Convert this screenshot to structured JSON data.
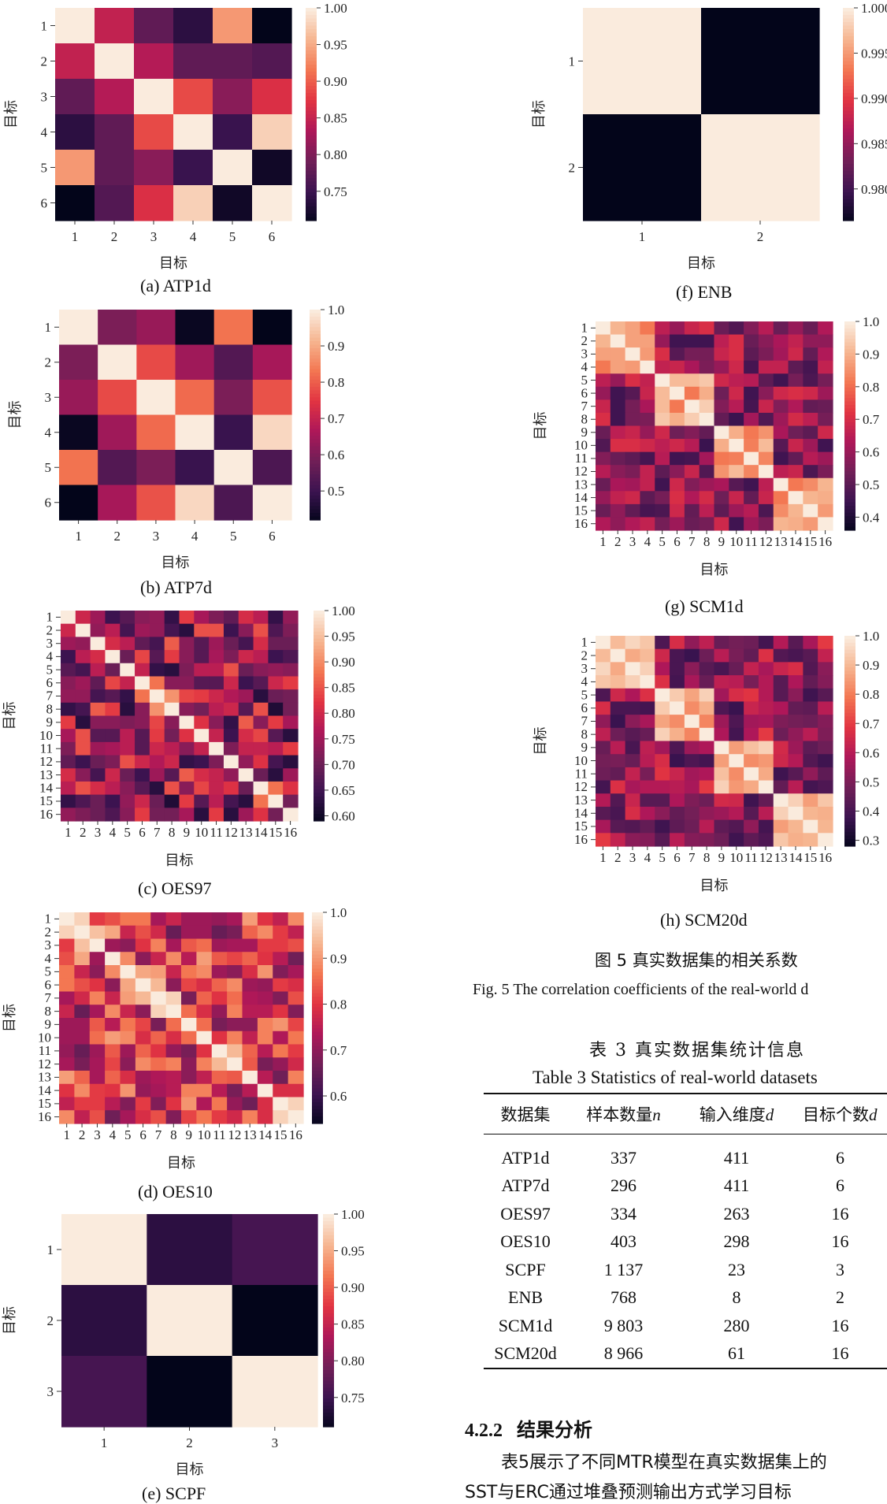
{
  "colormap": [
    "#03051a",
    "#3b1350",
    "#701f57",
    "#ad1759",
    "#e13342",
    "#f37651",
    "#f6b48f",
    "#faebdd"
  ],
  "axis_label": "目标",
  "chart_data": [
    {
      "id": "a",
      "type": "heatmap",
      "caption": "(a) ATP1d",
      "labels": [
        "1",
        "2",
        "3",
        "4",
        "5",
        "6"
      ],
      "vmin": 0.71,
      "vmax": 1.0,
      "colorbar_ticks": [
        "1.00",
        "0.95",
        "0.90",
        "0.85",
        "0.80",
        "0.75"
      ],
      "colorbar_values": [
        1.0,
        0.95,
        0.9,
        0.85,
        0.8,
        0.75
      ],
      "matrix": [
        [
          1.0,
          0.85,
          0.78,
          0.74,
          0.94,
          0.71
        ],
        [
          0.85,
          1.0,
          0.84,
          0.78,
          0.78,
          0.77
        ],
        [
          0.78,
          0.84,
          1.0,
          0.89,
          0.81,
          0.87
        ],
        [
          0.74,
          0.78,
          0.89,
          1.0,
          0.75,
          0.98
        ],
        [
          0.94,
          0.78,
          0.81,
          0.75,
          1.0,
          0.72
        ],
        [
          0.71,
          0.77,
          0.87,
          0.98,
          0.72,
          1.0
        ]
      ]
    },
    {
      "id": "b",
      "type": "heatmap",
      "caption": "(b) ATP7d",
      "labels": [
        "1",
        "2",
        "3",
        "4",
        "5",
        "6"
      ],
      "vmin": 0.42,
      "vmax": 1.0,
      "colorbar_ticks": [
        "1.0",
        "0.9",
        "0.8",
        "0.7",
        "0.6",
        "0.5"
      ],
      "colorbar_values": [
        1.0,
        0.9,
        0.8,
        0.7,
        0.6,
        0.5
      ],
      "matrix": [
        [
          1.0,
          0.6,
          0.64,
          0.43,
          0.83,
          0.42
        ],
        [
          0.6,
          1.0,
          0.78,
          0.65,
          0.54,
          0.66
        ],
        [
          0.64,
          0.78,
          1.0,
          0.82,
          0.6,
          0.79
        ],
        [
          0.43,
          0.65,
          0.82,
          1.0,
          0.5,
          0.97
        ],
        [
          0.83,
          0.54,
          0.6,
          0.5,
          1.0,
          0.53
        ],
        [
          0.42,
          0.66,
          0.79,
          0.97,
          0.53,
          1.0
        ]
      ]
    },
    {
      "id": "c",
      "type": "heatmap",
      "caption": "(c) OES97",
      "labels": [
        "1",
        "2",
        "3",
        "4",
        "5",
        "6",
        "7",
        "8",
        "9",
        "10",
        "11",
        "12",
        "13",
        "14",
        "15",
        "16"
      ],
      "vmin": 0.59,
      "vmax": 1.0,
      "colorbar_ticks": [
        "1.00",
        "0.95",
        "0.90",
        "0.85",
        "0.80",
        "0.75",
        "0.70",
        "0.65",
        "0.60"
      ],
      "colorbar_values": [
        1.0,
        0.95,
        0.9,
        0.85,
        0.8,
        0.75,
        0.7,
        0.65,
        0.6
      ],
      "seed": 7,
      "lo": 0.62,
      "hi": 0.86
    },
    {
      "id": "d",
      "type": "heatmap",
      "caption": "(d) OES10",
      "labels": [
        "1",
        "2",
        "3",
        "4",
        "5",
        "6",
        "7",
        "8",
        "9",
        "10",
        "11",
        "12",
        "13",
        "14",
        "15",
        "16"
      ],
      "vmin": 0.54,
      "vmax": 1.0,
      "colorbar_ticks": [
        "1.0",
        "0.9",
        "0.8",
        "0.7",
        "0.6"
      ],
      "colorbar_values": [
        1.0,
        0.9,
        0.8,
        0.7,
        0.6
      ],
      "seed": 19,
      "lo": 0.66,
      "hi": 0.92
    },
    {
      "id": "e",
      "type": "heatmap",
      "caption": "(e) SCPF",
      "labels": [
        "1",
        "2",
        "3"
      ],
      "vmin": 0.71,
      "vmax": 1.0,
      "colorbar_ticks": [
        "1.00",
        "0.95",
        "0.90",
        "0.85",
        "0.80",
        "0.75"
      ],
      "colorbar_values": [
        1.0,
        0.95,
        0.9,
        0.85,
        0.8,
        0.75
      ],
      "matrix": [
        [
          1.0,
          0.74,
          0.76
        ],
        [
          0.74,
          1.0,
          0.71
        ],
        [
          0.76,
          0.71,
          1.0
        ]
      ]
    },
    {
      "id": "f",
      "type": "heatmap",
      "caption": "(f) ENB",
      "labels": [
        "1",
        "2"
      ],
      "vmin": 0.9765,
      "vmax": 1.0,
      "colorbar_ticks": [
        "1.000",
        "0.995",
        "0.990",
        "0.985",
        "0.980"
      ],
      "colorbar_values": [
        1.0,
        0.995,
        0.99,
        0.985,
        0.98
      ],
      "matrix": [
        [
          1.0,
          0.9765
        ],
        [
          0.9765,
          1.0
        ]
      ]
    },
    {
      "id": "g",
      "type": "heatmap",
      "caption": "(g) SCM1d",
      "labels": [
        "1",
        "2",
        "3",
        "4",
        "5",
        "6",
        "7",
        "8",
        "9",
        "10",
        "11",
        "12",
        "13",
        "14",
        "15",
        "16"
      ],
      "vmin": 0.36,
      "vmax": 1.0,
      "colorbar_ticks": [
        "1.0",
        "0.9",
        "0.8",
        "0.7",
        "0.6",
        "0.5",
        "0.4"
      ],
      "colorbar_values": [
        1.0,
        0.9,
        0.8,
        0.7,
        0.6,
        0.5,
        0.4
      ],
      "seed": 31,
      "lo": 0.45,
      "hi": 0.72,
      "blocks": 4
    },
    {
      "id": "h",
      "type": "heatmap",
      "caption": "(h) SCM20d",
      "labels": [
        "1",
        "2",
        "3",
        "4",
        "5",
        "6",
        "7",
        "8",
        "9",
        "10",
        "11",
        "12",
        "13",
        "14",
        "15",
        "16"
      ],
      "vmin": 0.28,
      "vmax": 1.0,
      "colorbar_ticks": [
        "1.0",
        "0.9",
        "0.8",
        "0.7",
        "0.6",
        "0.5",
        "0.4",
        "0.3"
      ],
      "colorbar_values": [
        1.0,
        0.9,
        0.8,
        0.7,
        0.6,
        0.5,
        0.4,
        0.3
      ],
      "seed": 43,
      "lo": 0.38,
      "hi": 0.7,
      "blocks": 4
    }
  ],
  "figure": {
    "caption_cn": "图 5  真实数据集的相关系数",
    "caption_en": "Fig. 5  The correlation coefficients of the real-world d"
  },
  "table": {
    "title_cn": "表 3  真实数据集统计信息",
    "title_en": "Table 3  Statistics of real-world datasets",
    "headers": [
      "数据集",
      "样本数量",
      "输入维度",
      "目标个数"
    ],
    "header_symbols": [
      "",
      "n",
      "d",
      "d"
    ],
    "rows": [
      [
        "ATP1d",
        "337",
        "411",
        "6"
      ],
      [
        "ATP7d",
        "296",
        "411",
        "6"
      ],
      [
        "OES97",
        "334",
        "263",
        "16"
      ],
      [
        "OES10",
        "403",
        "298",
        "16"
      ],
      [
        "SCPF",
        "1 137",
        "23",
        "3"
      ],
      [
        "ENB",
        "768",
        "8",
        "2"
      ],
      [
        "SCM1d",
        "9 803",
        "280",
        "16"
      ],
      [
        "SCM20d",
        "8 966",
        "61",
        "16"
      ]
    ]
  },
  "section": {
    "number": "4.2.2",
    "title": "结果分析",
    "line1": "表5展示了不同MTR模型在真实数据集上的",
    "line2": "SST与ERC通过堆叠预测输出方式学习目标"
  }
}
